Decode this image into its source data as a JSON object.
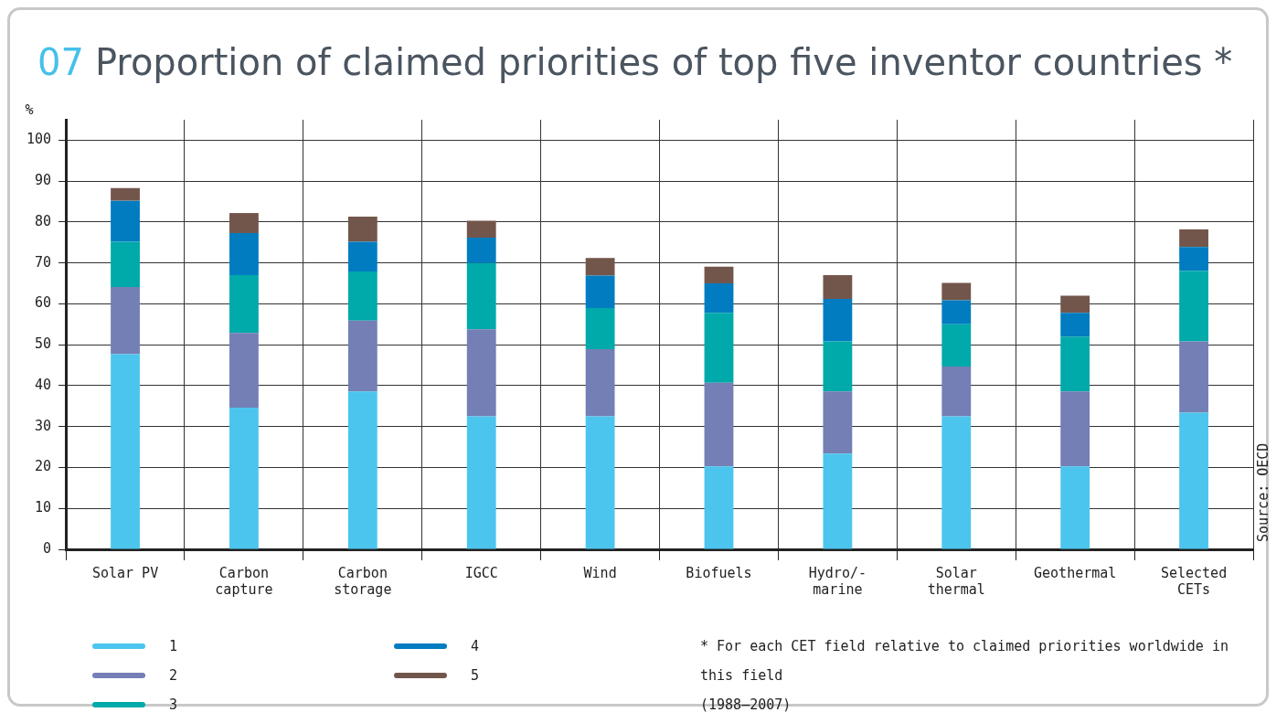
{
  "chart_data": {
    "type": "bar",
    "stacked": true,
    "title": "07 Proportion of claimed priorities of top five inventor countries *",
    "ylabel": "%",
    "categories": [
      "Solar PV",
      "Carbon\ncapture",
      "Carbon\nstorage",
      "IGCC",
      "Wind",
      "Biofuels",
      "Hydro/-\nmarine",
      "Solar\nthermal",
      "Geothermal",
      "Selected\nCETs"
    ],
    "series": [
      {
        "name": "1",
        "color": "#4cc5ee",
        "values": [
          47.7,
          34.6,
          38.6,
          32.5,
          32.5,
          20.3,
          23.4,
          32.5,
          20.3,
          33.4
        ]
      },
      {
        "name": "2",
        "color": "#737fb5",
        "values": [
          16.4,
          18.3,
          17.3,
          21.3,
          16.4,
          20.4,
          15.2,
          12.2,
          18.3,
          17.4
        ]
      },
      {
        "name": "3",
        "color": "#00a9aa",
        "values": [
          11.1,
          14.1,
          12.0,
          16.2,
          10.1,
          17.1,
          12.2,
          10.3,
          13.4,
          17.3
        ]
      },
      {
        "name": "4",
        "color": "#017cc1",
        "values": [
          10.0,
          10.3,
          7.3,
          6.2,
          7.9,
          7.2,
          10.4,
          5.9,
          5.8,
          5.8
        ]
      },
      {
        "name": "5",
        "color": "#73564b",
        "values": [
          3.1,
          4.9,
          6.1,
          4.1,
          4.3,
          4.1,
          5.8,
          4.2,
          4.2,
          4.3
        ]
      }
    ],
    "ylim": [
      0,
      105
    ],
    "yticks": [
      0,
      10,
      20,
      30,
      40,
      50,
      60,
      70,
      80,
      90,
      100
    ],
    "grid": true,
    "legend": "bottom left",
    "annotations": [
      "Source: OECD",
      "* For each CET field relative to claimed priorities worldwide in this field",
      "(1988–2007)"
    ]
  }
}
